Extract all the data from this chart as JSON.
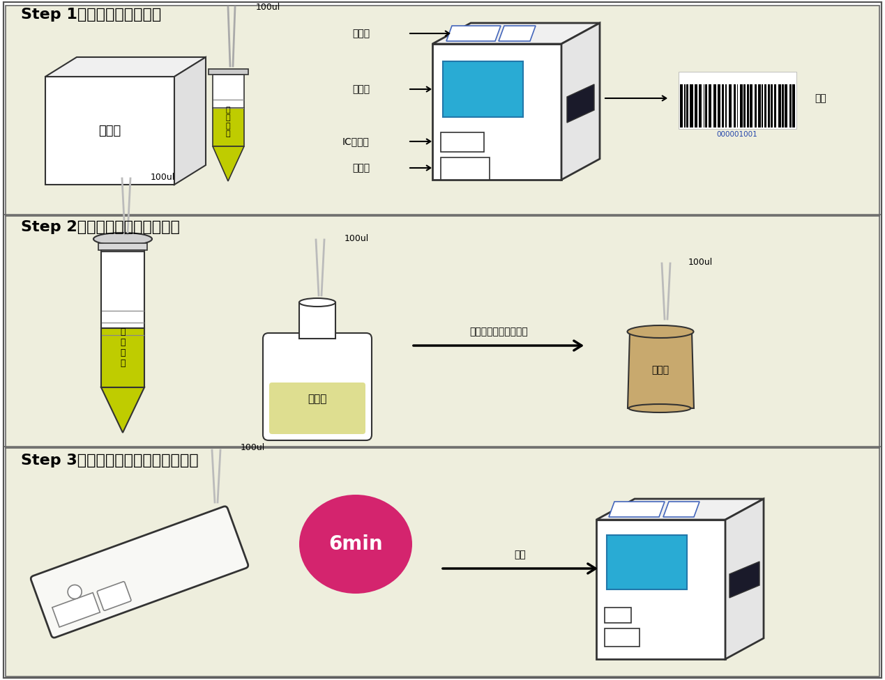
{
  "bg_color": "#eeeedd",
  "panel_bg": "#eeeedd",
  "step1_title": "Step 1：回温、开机、扫码",
  "step2_title": "Step 2：取样、加稀释液，混匀",
  "step3_title": "Step 3：加样，读数，打印检测报告",
  "cyan_color": "#29ABD4",
  "sample_color": "#BFCC00",
  "diluent_color": "#DEDE90",
  "cup_color": "#C8A96E",
  "pink_color": "#D4246E",
  "line_color": "#333333",
  "label_打印机": "打印机",
  "label_显示屏": "显示屏",
  "label_IC卡插口": "IC卡插口",
  "label_插卡口": "插卡口",
  "label_扫码": "扫码",
  "label_试剂盒": "试剂盒",
  "label_待检样品": "待\n检\n样\n品",
  "label_稀释液": "稀释液",
  "label_样品杯": "样品杯",
  "label_加入样品杯吸打混匀": "加入样品杯，吸打混匀",
  "label_6min": "6min",
  "label_读数": "读数",
  "label_100ul": "100ul",
  "bc_number": "000001001"
}
